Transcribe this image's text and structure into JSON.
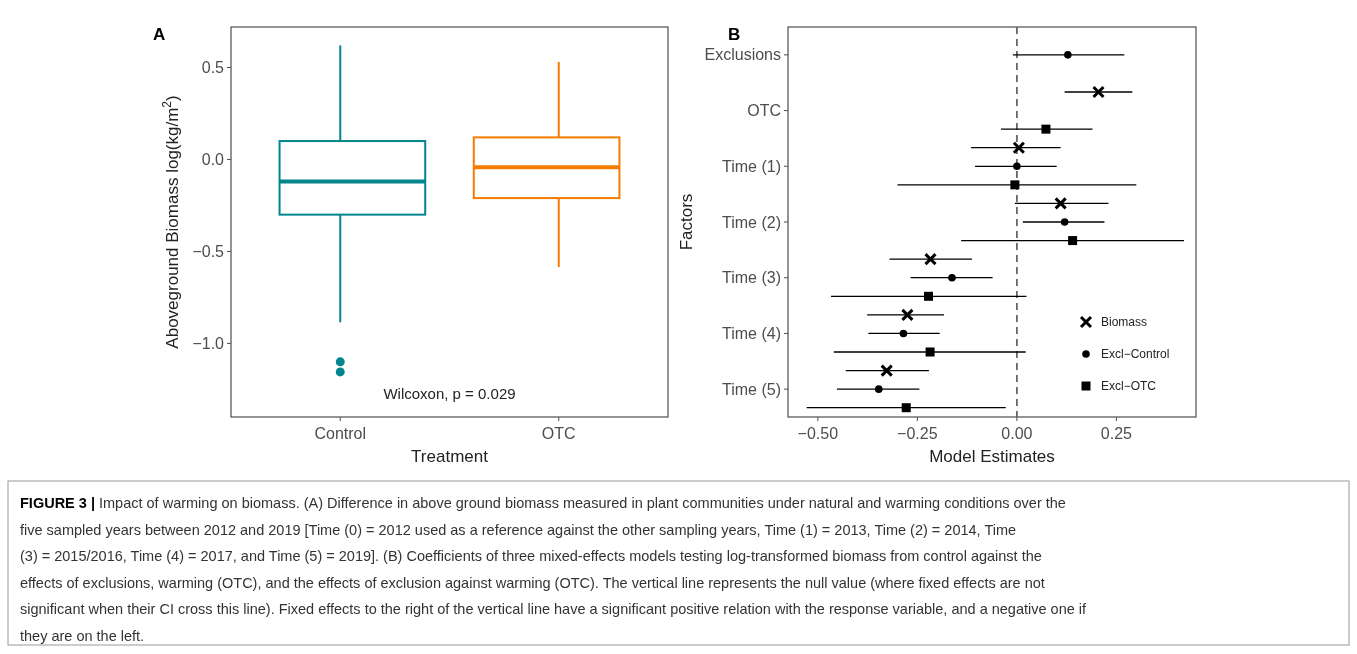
{
  "chart_data": [
    {
      "type": "box",
      "title": "A",
      "xlabel": "Treatment",
      "ylabel": "Aboveground Biomass log(kg/m$^{2}$)",
      "categories": [
        "Control",
        "OTC"
      ],
      "colors": [
        "#00868b",
        "#f57c00"
      ],
      "boxes": [
        {
          "low": -0.885,
          "q1": -0.3,
          "median": -0.12,
          "q3": 0.1,
          "high": 0.62,
          "outliers": [
            -1.1,
            -1.155
          ]
        },
        {
          "low": -0.585,
          "q1": -0.21,
          "median": -0.043,
          "q3": 0.12,
          "high": 0.53
        }
      ],
      "ylim": [
        -1.4,
        0.72
      ],
      "yticks": [
        {
          "value": -1,
          "label": "−1.0"
        },
        {
          "value": -0.5,
          "label": "−0.5"
        },
        {
          "value": 0,
          "label": "0.0"
        },
        {
          "value": 0.5,
          "label": "0.5"
        }
      ],
      "annotations": [
        "Wilcoxon, p = 0.029"
      ]
    },
    {
      "type": "scatter",
      "orientation": "horizontal",
      "title": "B",
      "xlabel": "Model Estimates",
      "ylabel": "Factors",
      "categories": [
        "Exclusions",
        "OTC",
        "Time (1)",
        "Time (2)",
        "Time (3)",
        "Time (4)",
        "Time (5)"
      ],
      "xlim": [
        -0.575,
        0.45
      ],
      "xticks": [
        {
          "value": -0.5,
          "label": "−0.50"
        },
        {
          "value": -0.25,
          "label": "−0.25"
        },
        {
          "value": 0,
          "label": "0.00"
        },
        {
          "value": 0.25,
          "label": "0.25"
        }
      ],
      "legend": "bottom right",
      "ref_lines": [
        {
          "axis": "x",
          "value": 0,
          "color": "#666666",
          "line_style": "dashed"
        }
      ],
      "series": [
        {
          "name": "Biomass",
          "color": "#000000",
          "marker": "cross",
          "values": [
            null,
            0.205,
            0.005,
            0.11,
            -0.217,
            -0.275,
            -0.327
          ],
          "errors": [
            null,
            [
              0.12,
              0.29
            ],
            [
              -0.115,
              0.11
            ],
            [
              -0.005,
              0.23
            ],
            [
              -0.32,
              -0.113
            ],
            [
              -0.376,
              -0.183
            ],
            [
              -0.43,
              -0.221
            ]
          ]
        },
        {
          "name": "Excl−Control",
          "color": "#000000",
          "marker": "circle",
          "values": [
            0.128,
            null,
            0.0,
            0.12,
            -0.163,
            -0.285,
            -0.347
          ],
          "errors": [
            [
              -0.01,
              0.27
            ],
            null,
            [
              -0.105,
              0.1
            ],
            [
              0.015,
              0.22
            ],
            [
              -0.267,
              -0.061
            ],
            [
              -0.373,
              -0.194
            ],
            [
              -0.452,
              -0.245
            ]
          ]
        },
        {
          "name": "Excl−OTC",
          "color": "#000000",
          "marker": "square",
          "values": [
            null,
            0.073,
            -0.005,
            0.14,
            -0.222,
            -0.218,
            -0.278
          ],
          "errors": [
            null,
            [
              -0.04,
              0.19
            ],
            [
              -0.3,
              0.3
            ],
            [
              -0.14,
              0.42
            ],
            [
              -0.467,
              0.024
            ],
            [
              -0.46,
              0.022
            ],
            [
              -0.528,
              -0.028
            ]
          ]
        }
      ]
    },
    {
      "type": "other",
      "title": "FIGURE 3 |",
      "annotations": [
        "Impact of warming on biomass. (A) Difference in above ground biomass measured in plant communities under natural and warming conditions over the",
        "five sampled years between 2012 and 2019 [Time (0) = 2012 used as a reference against the other sampling years, Time (1) = 2013, Time (2) = 2014, Time",
        "(3) = 2015/2016, Time (4) = 2017, and Time (5) = 2019]. (B) Coefficients of three mixed-effects models testing log-transformed biomass from control against the",
        "effects of exclusions, warming (OTC), and the effects of exclusion against warming (OTC). The vertical line represents the null value (where fixed effects are not",
        "significant when their CI cross this line). Fixed effects to the right of the vertical line have a significant positive relation with the response variable, and a negative one if",
        "they are on the left."
      ]
    }
  ]
}
